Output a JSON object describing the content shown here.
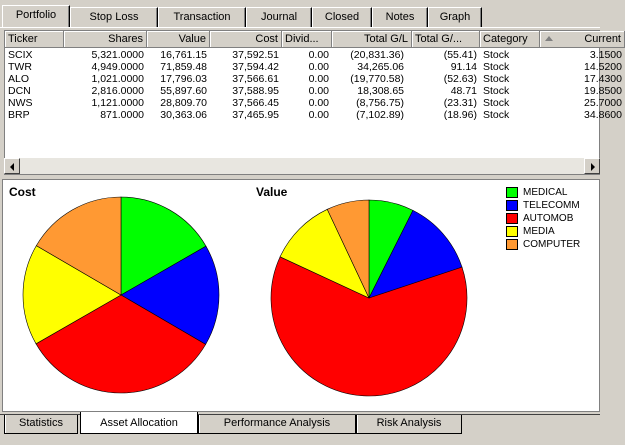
{
  "top_tabs": [
    "Portfolio",
    "Stop Loss",
    "Transaction",
    "Journal",
    "Closed",
    "Notes",
    "Graph"
  ],
  "active_top_tab": "Portfolio",
  "columns": [
    "Ticker",
    "Shares",
    "Value",
    "Cost",
    "Divid...",
    "Total G/L",
    "Total G/...",
    "Category",
    "Current"
  ],
  "rows": [
    [
      "SCIX",
      "5,321.0000",
      "16,761.15",
      "37,592.51",
      "0.00",
      "(20,831.36)",
      "(55.41)",
      "Stock",
      "3.1500"
    ],
    [
      "TWR",
      "4,949.0000",
      "71,859.48",
      "37,594.42",
      "0.00",
      "34,265.06",
      "91.14",
      "Stock",
      "14.5200"
    ],
    [
      "ALO",
      "1,021.0000",
      "17,796.03",
      "37,566.61",
      "0.00",
      "(19,770.58)",
      "(52.63)",
      "Stock",
      "17.4300"
    ],
    [
      "DCN",
      "2,816.0000",
      "55,897.60",
      "37,588.95",
      "0.00",
      "18,308.65",
      "48.71",
      "Stock",
      "19.8500"
    ],
    [
      "NWS",
      "1,121.0000",
      "28,809.70",
      "37,566.45",
      "0.00",
      "(8,756.75)",
      "(23.31)",
      "Stock",
      "25.7000"
    ],
    [
      "BRP",
      "871.0000",
      "30,363.06",
      "37,465.95",
      "0.00",
      "(7,102.89)",
      "(18.96)",
      "Stock",
      "34.8600"
    ]
  ],
  "chart_data": [
    {
      "type": "pie",
      "title": "Cost",
      "categories": [
        "MEDICAL",
        "TELECOMM",
        "AUTOMOB",
        "MEDIA",
        "COMPUTER"
      ],
      "values": [
        16.7,
        16.7,
        33.3,
        16.7,
        16.6
      ],
      "colors": [
        "#00ff00",
        "#0000ff",
        "#ff0000",
        "#ffff00",
        "#ff9933"
      ]
    },
    {
      "type": "pie",
      "title": "Value",
      "categories": [
        "MEDICAL",
        "TELECOMM",
        "AUTOMOB",
        "MEDIA",
        "COMPUTER"
      ],
      "values": [
        7.4,
        12.5,
        62.0,
        11.1,
        7.0
      ],
      "colors": [
        "#00ff00",
        "#0000ff",
        "#ff0000",
        "#ffff00",
        "#ff9933"
      ]
    }
  ],
  "legend": [
    {
      "label": "MEDICAL",
      "color": "#00ff00"
    },
    {
      "label": "TELECOMM",
      "color": "#0000ff"
    },
    {
      "label": "AUTOMOB",
      "color": "#ff0000"
    },
    {
      "label": "MEDIA",
      "color": "#ffff00"
    },
    {
      "label": "COMPUTER",
      "color": "#ff9933"
    }
  ],
  "bottom_tabs": [
    "Statistics",
    "Asset Allocation",
    "Performance Analysis",
    "Risk Analysis"
  ],
  "active_bottom_tab": "Asset Allocation"
}
